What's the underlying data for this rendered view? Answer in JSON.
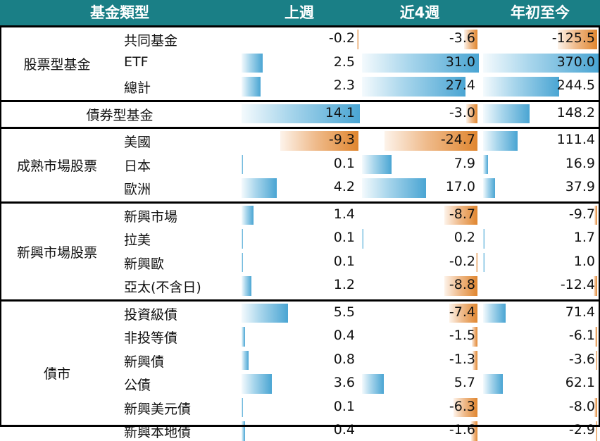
{
  "header": {
    "col_category": "基金類型",
    "col_week": "上週",
    "col_4weeks": "近4週",
    "col_ytd": "年初至今"
  },
  "groups": [
    {
      "label": "股票型基金",
      "rows": [
        {
          "label": "共同基金",
          "week": "-0.2",
          "four_weeks": "-3.6",
          "ytd": "-125.5"
        },
        {
          "label": "ETF",
          "week": "2.5",
          "four_weeks": "31.0",
          "ytd": "370.0"
        },
        {
          "label": "總計",
          "week": "2.3",
          "four_weeks": "27.4",
          "ytd": "244.5"
        }
      ]
    },
    {
      "label": "債券型基金",
      "single": true,
      "rows": [
        {
          "label": "",
          "week": "14.1",
          "four_weeks": "-3.0",
          "ytd": "148.2"
        }
      ]
    },
    {
      "label": "成熟市場股票",
      "rows": [
        {
          "label": "美國",
          "week": "-9.3",
          "four_weeks": "-24.7",
          "ytd": "111.4"
        },
        {
          "label": "日本",
          "week": "0.1",
          "four_weeks": "7.9",
          "ytd": "16.9"
        },
        {
          "label": "歐洲",
          "week": "4.2",
          "four_weeks": "17.0",
          "ytd": "37.9"
        }
      ]
    },
    {
      "label": "新興市場股票",
      "rows": [
        {
          "label": "新興市場",
          "week": "1.4",
          "four_weeks": "-8.7",
          "ytd": "-9.7"
        },
        {
          "label": "拉美",
          "week": "0.1",
          "four_weeks": "0.2",
          "ytd": "1.7"
        },
        {
          "label": "新興歐",
          "week": "0.1",
          "four_weeks": "-0.2",
          "ytd": "1.0"
        },
        {
          "label": "亞太(不含日)",
          "week": "1.2",
          "four_weeks": "-8.8",
          "ytd": "-12.4"
        }
      ]
    },
    {
      "label": "債市",
      "rows": [
        {
          "label": "投資級債",
          "week": "5.5",
          "four_weeks": "-7.4",
          "ytd": "71.4"
        },
        {
          "label": "非投等債",
          "week": "0.4",
          "four_weeks": "-1.5",
          "ytd": "-6.1"
        },
        {
          "label": "新興債",
          "week": "0.8",
          "four_weeks": "-1.3",
          "ytd": "-3.6"
        },
        {
          "label": "公債",
          "week": "3.6",
          "four_weeks": "5.7",
          "ytd": "62.1"
        },
        {
          "label": "新興美元債",
          "week": "0.1",
          "four_weeks": "-6.3",
          "ytd": "-8.0"
        },
        {
          "label": "新興本地債",
          "week": "0.4",
          "four_weeks": "-1.6",
          "ytd": "-2.9"
        }
      ]
    }
  ]
}
